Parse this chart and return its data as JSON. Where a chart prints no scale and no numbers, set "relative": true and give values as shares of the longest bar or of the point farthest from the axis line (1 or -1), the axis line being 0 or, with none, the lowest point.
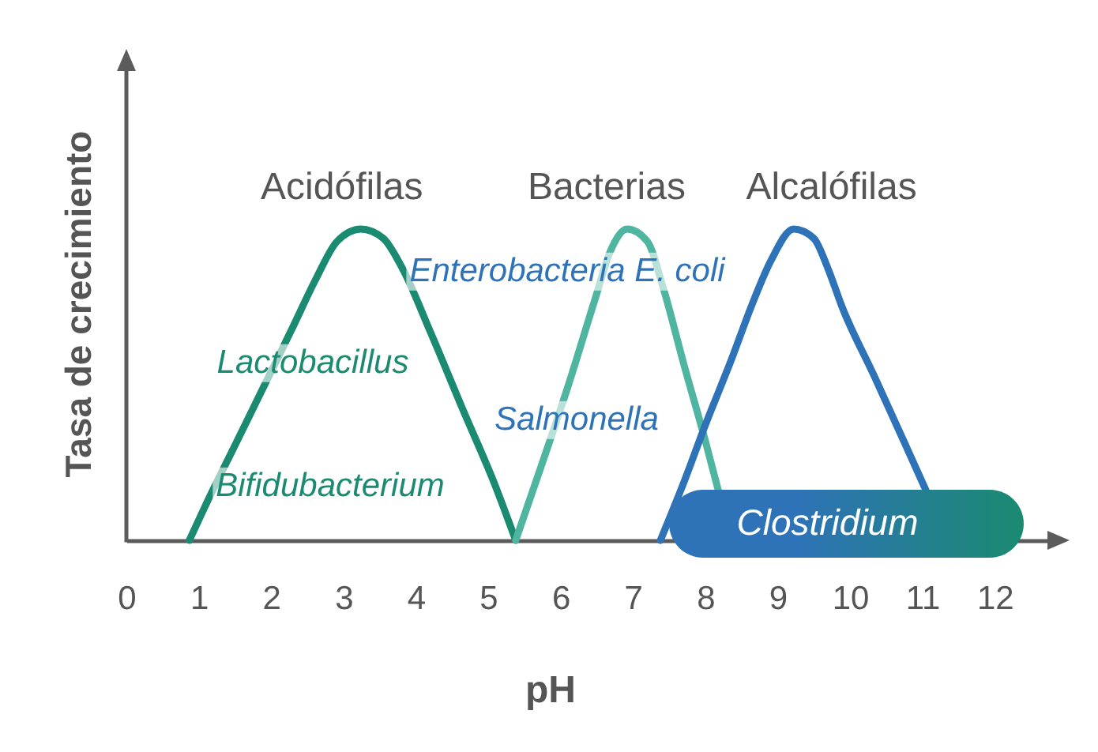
{
  "chart_data": {
    "type": "line",
    "relative": true,
    "xlabel": "pH",
    "ylabel": "Tasa de crecimiento",
    "xlim": [
      0,
      12.75
    ],
    "xticks": [
      0,
      1,
      2,
      3,
      4,
      5,
      6,
      7,
      8,
      9,
      10,
      11,
      12
    ],
    "tick_labels": "x",
    "series": [
      {
        "name": "Acidófilas",
        "color": "#1a8a70",
        "x": [
          0.87,
          1.13,
          1.49,
          1.89,
          2.29,
          2.62,
          2.91,
          3.24,
          3.55,
          3.8,
          4.2,
          4.65,
          5.09,
          5.38
        ],
        "values": [
          0,
          0.13,
          0.3,
          0.49,
          0.68,
          0.84,
          0.96,
          1,
          0.97,
          0.88,
          0.67,
          0.42,
          0.18,
          0
        ]
      },
      {
        "name": "Bacterias",
        "color": "#4fb5a0",
        "x": [
          5.38,
          5.75,
          6.11,
          6.47,
          6.69,
          6.92,
          7.2,
          7.42,
          7.71,
          8.0,
          8.18
        ],
        "values": [
          0,
          0.25,
          0.5,
          0.77,
          0.93,
          1,
          0.96,
          0.81,
          0.56,
          0.32,
          0.16
        ]
      },
      {
        "name": "Alcalófilas",
        "color": "#2e72b8",
        "x": [
          7.38,
          7.71,
          8.0,
          8.36,
          8.65,
          8.91,
          9.22,
          9.5,
          9.7,
          9.89,
          10.33,
          10.76,
          11.05
        ],
        "values": [
          0,
          0.19,
          0.37,
          0.58,
          0.76,
          0.9,
          1,
          0.97,
          0.87,
          0.75,
          0.53,
          0.31,
          0.16
        ]
      }
    ],
    "annotations": [
      "Lactobacillus",
      "Bifidubacterium",
      "Enterobacteria E. coli",
      "Salmonella"
    ],
    "bands": [
      {
        "axis": "x",
        "from": 7.5,
        "to": 12.4,
        "label": "Clostridium",
        "color": "#2e72b8"
      }
    ]
  }
}
